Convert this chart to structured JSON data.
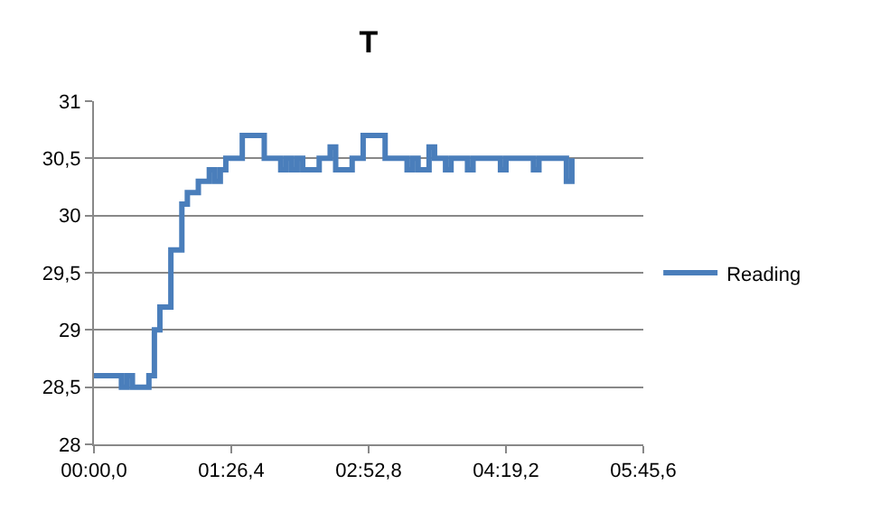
{
  "chart_data": {
    "type": "step",
    "title": "T",
    "categories": [
      "00:00,0",
      null,
      null,
      null,
      null,
      null,
      null,
      null,
      null,
      null,
      null,
      null,
      null,
      null,
      null,
      null,
      null,
      null,
      null,
      null,
      null,
      null,
      null,
      null,
      null,
      "01:26,4",
      null,
      null,
      null,
      null,
      null,
      null,
      null,
      null,
      null,
      null,
      null,
      null,
      null,
      null,
      null,
      null,
      null,
      null,
      null,
      null,
      null,
      null,
      null,
      null,
      "02:52,8",
      null,
      null,
      null,
      null,
      null,
      null,
      null,
      null,
      null,
      null,
      null,
      null,
      null,
      null,
      null,
      null,
      null,
      null,
      null,
      null,
      null,
      null,
      null,
      null,
      "04:19,2",
      null,
      null,
      null,
      null,
      null,
      null,
      null,
      null,
      null,
      null,
      null,
      null,
      null,
      null,
      null,
      null,
      null,
      null,
      null,
      null,
      null,
      null,
      null,
      null,
      "05:45,6"
    ],
    "ylim": [
      28,
      31
    ],
    "yticks": [
      28,
      {
        "value": 28.5,
        "label": "28,5"
      },
      29,
      {
        "value": 29.5,
        "label": "29,5"
      },
      30,
      {
        "value": 30.5,
        "label": "30,5"
      },
      31
    ],
    "grid": "y",
    "legend": "right",
    "marker": "none",
    "line_style": "solid",
    "series": [
      {
        "name": "Reading",
        "color": "#4a7ebb",
        "values": [
          28.6,
          28.6,
          28.6,
          28.6,
          28.6,
          28.5,
          28.6,
          28.5,
          28.5,
          28.5,
          28.6,
          29.0,
          29.2,
          29.2,
          29.7,
          29.7,
          30.1,
          30.2,
          30.2,
          30.3,
          30.3,
          30.4,
          30.3,
          30.4,
          30.5,
          30.5,
          30.5,
          30.7,
          30.7,
          30.7,
          30.7,
          30.5,
          30.5,
          30.5,
          30.4,
          30.5,
          30.4,
          30.5,
          30.4,
          30.4,
          30.4,
          30.5,
          30.5,
          30.6,
          30.4,
          30.4,
          30.4,
          30.5,
          30.5,
          30.7,
          30.7,
          30.7,
          30.7,
          30.5,
          30.5,
          30.5,
          30.5,
          30.4,
          30.5,
          30.4,
          30.4,
          30.6,
          30.5,
          30.5,
          30.4,
          30.5,
          30.5,
          30.5,
          30.4,
          30.5,
          30.5,
          30.5,
          30.5,
          30.5,
          30.4,
          30.5,
          30.5,
          30.5,
          30.5,
          30.5,
          30.4,
          30.5,
          30.5,
          30.5,
          30.5,
          30.5,
          30.3,
          30.5,
          null,
          null,
          null,
          null,
          null,
          null,
          null,
          null,
          null,
          null,
          null,
          null,
          null
        ]
      }
    ]
  }
}
